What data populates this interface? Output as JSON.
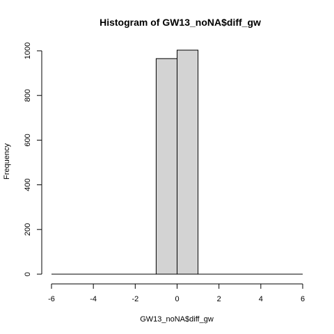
{
  "chart_data": {
    "type": "bar",
    "title": "Histogram of GW13_noNA$diff_gw",
    "xlabel": "GW13_noNA$diff_gw",
    "ylabel": "Frequency",
    "xlim": [
      -6,
      6
    ],
    "ylim": [
      0,
      1000
    ],
    "x_ticks": [
      "-6",
      "-4",
      "-2",
      "0",
      "2",
      "4",
      "6"
    ],
    "y_ticks": [
      "0",
      "200",
      "400",
      "600",
      "800",
      "1000"
    ],
    "bins": [
      {
        "from": -6,
        "to": -1,
        "count": 0
      },
      {
        "from": -1,
        "to": 0,
        "count": 965
      },
      {
        "from": 0,
        "to": 1,
        "count": 1003
      },
      {
        "from": 1,
        "to": 6,
        "count": 0
      }
    ],
    "bar_fill": "#d3d3d3",
    "bar_stroke": "#000000",
    "grid": false
  }
}
